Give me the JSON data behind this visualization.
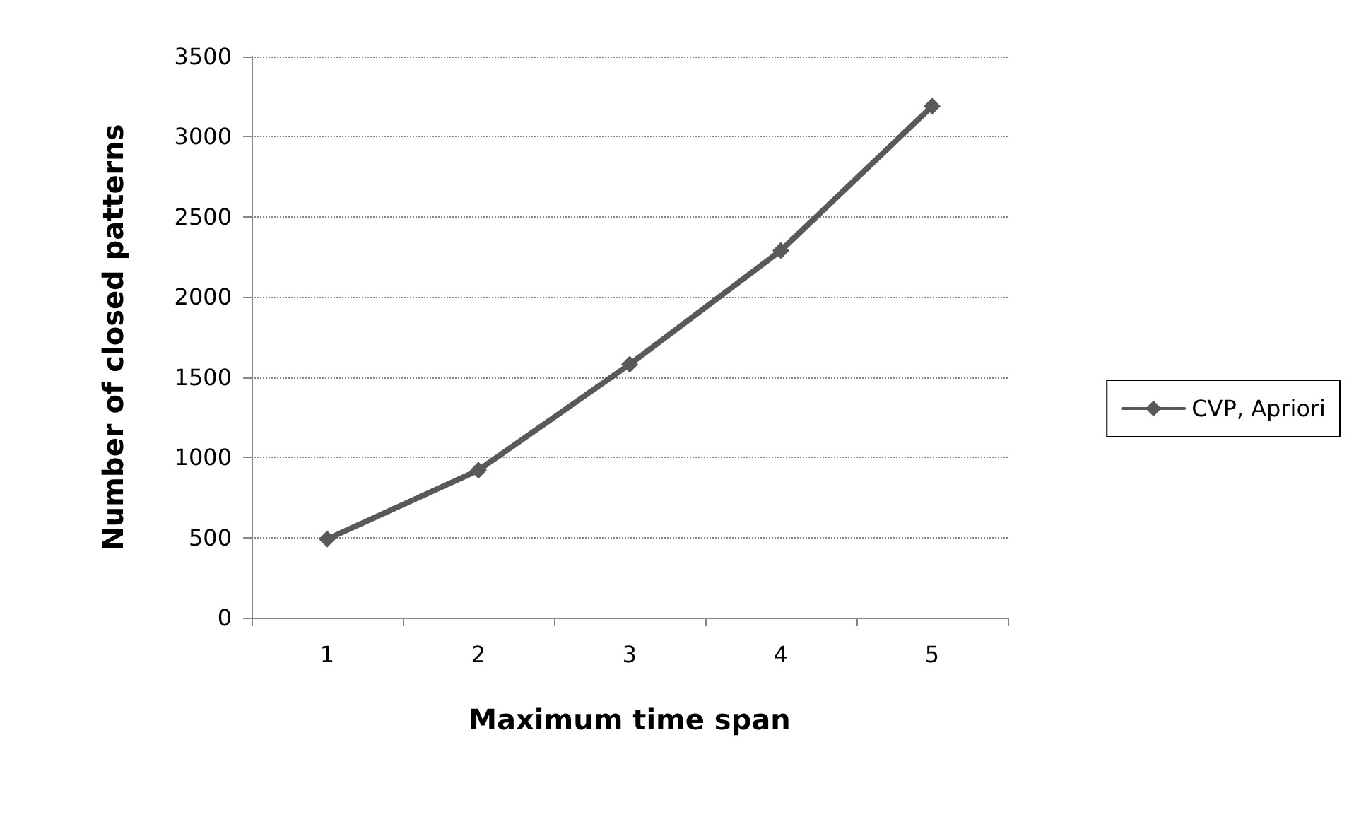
{
  "chart_data": {
    "type": "line",
    "xlabel": "Maximum time span",
    "ylabel": "Number of closed patterns",
    "categories": [
      "1",
      "2",
      "3",
      "4",
      "5"
    ],
    "series": [
      {
        "name": "CVP, Apriori",
        "color": "#595959",
        "values": [
          490,
          920,
          1580,
          2290,
          3190
        ]
      }
    ],
    "ylim": [
      0,
      3500
    ],
    "yticks": [
      0,
      500,
      1000,
      1500,
      2000,
      2500,
      3000,
      3500
    ],
    "grid": "y",
    "legend": "right",
    "marker": "diamond",
    "line_style": "solid"
  }
}
